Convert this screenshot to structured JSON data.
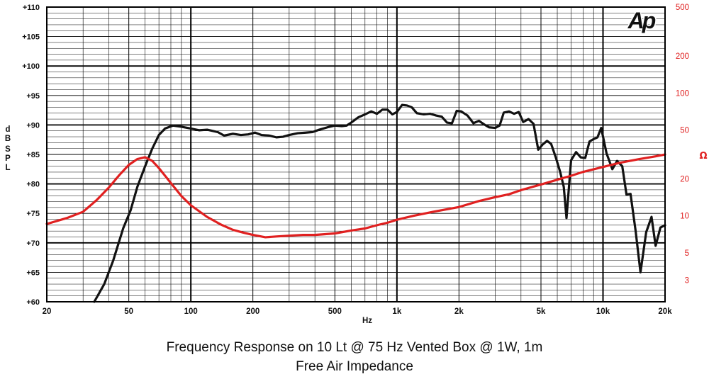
{
  "chart_data": {
    "type": "line",
    "title": "Frequency Response on 10 Lt @ 75 Hz Vented Box @ 1W, 1m",
    "subtitle": "Free Air Impedance",
    "xlabel": "Hz",
    "ylabel": "dB SPL",
    "y2label": "Ω",
    "logo": "Ap",
    "x_scale": "log",
    "xlim": [
      20,
      20000
    ],
    "ylim": [
      60,
      110
    ],
    "y2_scale": "log",
    "y2lim": [
      2,
      500
    ],
    "grid": true,
    "x_ticks": [
      {
        "v": 20,
        "label": "20"
      },
      {
        "v": 50,
        "label": "50"
      },
      {
        "v": 100,
        "label": "100"
      },
      {
        "v": 200,
        "label": "200"
      },
      {
        "v": 500,
        "label": "500"
      },
      {
        "v": 1000,
        "label": "1k"
      },
      {
        "v": 2000,
        "label": "2k"
      },
      {
        "v": 5000,
        "label": "5k"
      },
      {
        "v": 10000,
        "label": "10k"
      },
      {
        "v": 20000,
        "label": "20k"
      }
    ],
    "y_ticks": [
      {
        "v": 110,
        "label": "+110"
      },
      {
        "v": 105,
        "label": "+105"
      },
      {
        "v": 100,
        "label": "+100"
      },
      {
        "v": 95,
        "label": "+95"
      },
      {
        "v": 90,
        "label": "+90"
      },
      {
        "v": 85,
        "label": "+85"
      },
      {
        "v": 80,
        "label": "+80"
      },
      {
        "v": 75,
        "label": "+75"
      },
      {
        "v": 70,
        "label": "+70"
      },
      {
        "v": 65,
        "label": "+65"
      },
      {
        "v": 60,
        "label": "+60"
      }
    ],
    "y2_ticks": [
      {
        "v": 500,
        "label": "500"
      },
      {
        "v": 200,
        "label": "200"
      },
      {
        "v": 100,
        "label": "100"
      },
      {
        "v": 50,
        "label": "50"
      },
      {
        "v": 20,
        "label": "20"
      },
      {
        "v": 10,
        "label": "10"
      },
      {
        "v": 5,
        "label": "5"
      },
      {
        "v": 3,
        "label": "3"
      }
    ],
    "colors": {
      "spl": "#111111",
      "impedance": "#e02020",
      "grid": "#000000"
    },
    "series": [
      {
        "axis": "left",
        "color": "#111111",
        "points": [
          [
            34,
            60
          ],
          [
            38,
            63
          ],
          [
            42,
            67
          ],
          [
            47,
            72.5
          ],
          [
            51,
            75.5
          ],
          [
            55,
            79.5
          ],
          [
            60,
            83
          ],
          [
            65,
            86
          ],
          [
            70,
            88.3
          ],
          [
            75,
            89.4
          ],
          [
            82,
            89.9
          ],
          [
            90,
            89.7
          ],
          [
            100,
            89.4
          ],
          [
            110,
            89.1
          ],
          [
            120,
            89.2
          ],
          [
            135,
            88.8
          ],
          [
            145,
            88.2
          ],
          [
            160,
            88.5
          ],
          [
            175,
            88.3
          ],
          [
            190,
            88.4
          ],
          [
            205,
            88.7
          ],
          [
            220,
            88.3
          ],
          [
            240,
            88.2
          ],
          [
            260,
            87.9
          ],
          [
            280,
            88.0
          ],
          [
            300,
            88.3
          ],
          [
            330,
            88.6
          ],
          [
            360,
            88.7
          ],
          [
            390,
            88.8
          ],
          [
            420,
            89.2
          ],
          [
            460,
            89.6
          ],
          [
            500,
            89.9
          ],
          [
            540,
            89.8
          ],
          [
            570,
            89.9
          ],
          [
            600,
            90.4
          ],
          [
            650,
            91.3
          ],
          [
            700,
            91.8
          ],
          [
            750,
            92.3
          ],
          [
            800,
            91.9
          ],
          [
            850,
            92.6
          ],
          [
            900,
            92.6
          ],
          [
            950,
            91.8
          ],
          [
            1000,
            92.2
          ],
          [
            1060,
            93.4
          ],
          [
            1120,
            93.3
          ],
          [
            1180,
            93.0
          ],
          [
            1250,
            92.0
          ],
          [
            1350,
            91.8
          ],
          [
            1450,
            91.9
          ],
          [
            1550,
            91.6
          ],
          [
            1650,
            91.4
          ],
          [
            1750,
            90.4
          ],
          [
            1850,
            90.3
          ],
          [
            1950,
            92.4
          ],
          [
            2050,
            92.3
          ],
          [
            2200,
            91.6
          ],
          [
            2350,
            90.3
          ],
          [
            2500,
            90.7
          ],
          [
            2650,
            90.1
          ],
          [
            2800,
            89.6
          ],
          [
            3000,
            89.5
          ],
          [
            3150,
            89.9
          ],
          [
            3300,
            92.1
          ],
          [
            3500,
            92.3
          ],
          [
            3700,
            91.9
          ],
          [
            3900,
            92.2
          ],
          [
            4100,
            90.5
          ],
          [
            4350,
            91.0
          ],
          [
            4600,
            90.2
          ],
          [
            4850,
            85.8
          ],
          [
            5100,
            86.7
          ],
          [
            5350,
            87.3
          ],
          [
            5600,
            86.8
          ],
          [
            5900,
            84.5
          ],
          [
            6200,
            82.0
          ],
          [
            6450,
            79.5
          ],
          [
            6650,
            74.2
          ],
          [
            7000,
            84.0
          ],
          [
            7400,
            85.4
          ],
          [
            7800,
            84.5
          ],
          [
            8200,
            84.4
          ],
          [
            8600,
            87.2
          ],
          [
            9000,
            87.6
          ],
          [
            9400,
            87.9
          ],
          [
            9800,
            89.5
          ],
          [
            10400,
            85.2
          ],
          [
            11100,
            82.5
          ],
          [
            11700,
            83.9
          ],
          [
            12400,
            83.0
          ],
          [
            13000,
            78.2
          ],
          [
            13600,
            78.3
          ],
          [
            14400,
            72.0
          ],
          [
            15200,
            65.0
          ],
          [
            16200,
            71.8
          ],
          [
            17200,
            74.4
          ],
          [
            18000,
            69.5
          ],
          [
            19000,
            72.6
          ],
          [
            20000,
            73.0
          ]
        ]
      },
      {
        "axis": "right",
        "color": "#e02020",
        "points": [
          [
            20,
            8.6
          ],
          [
            25,
            9.6
          ],
          [
            30,
            10.8
          ],
          [
            35,
            13.5
          ],
          [
            40,
            17.0
          ],
          [
            45,
            21.5
          ],
          [
            50,
            26.0
          ],
          [
            55,
            29.0
          ],
          [
            60,
            30.0
          ],
          [
            65,
            28.0
          ],
          [
            70,
            24.5
          ],
          [
            80,
            18.5
          ],
          [
            90,
            14.5
          ],
          [
            100,
            12.2
          ],
          [
            120,
            9.8
          ],
          [
            140,
            8.5
          ],
          [
            160,
            7.7
          ],
          [
            180,
            7.3
          ],
          [
            200,
            7.0
          ],
          [
            230,
            6.7
          ],
          [
            260,
            6.8
          ],
          [
            300,
            6.9
          ],
          [
            350,
            7.0
          ],
          [
            400,
            7.0
          ],
          [
            500,
            7.2
          ],
          [
            600,
            7.6
          ],
          [
            700,
            7.9
          ],
          [
            800,
            8.4
          ],
          [
            900,
            8.8
          ],
          [
            1000,
            9.3
          ],
          [
            1200,
            10.0
          ],
          [
            1500,
            10.8
          ],
          [
            2000,
            11.8
          ],
          [
            2500,
            13.2
          ],
          [
            3000,
            14.2
          ],
          [
            3500,
            15.0
          ],
          [
            4000,
            16.2
          ],
          [
            5000,
            18.0
          ],
          [
            6000,
            19.7
          ],
          [
            7000,
            21.2
          ],
          [
            8000,
            22.8
          ],
          [
            10000,
            25.0
          ],
          [
            12000,
            27.0
          ],
          [
            15000,
            29.0
          ],
          [
            18000,
            30.5
          ],
          [
            20000,
            31.6
          ]
        ]
      }
    ]
  }
}
